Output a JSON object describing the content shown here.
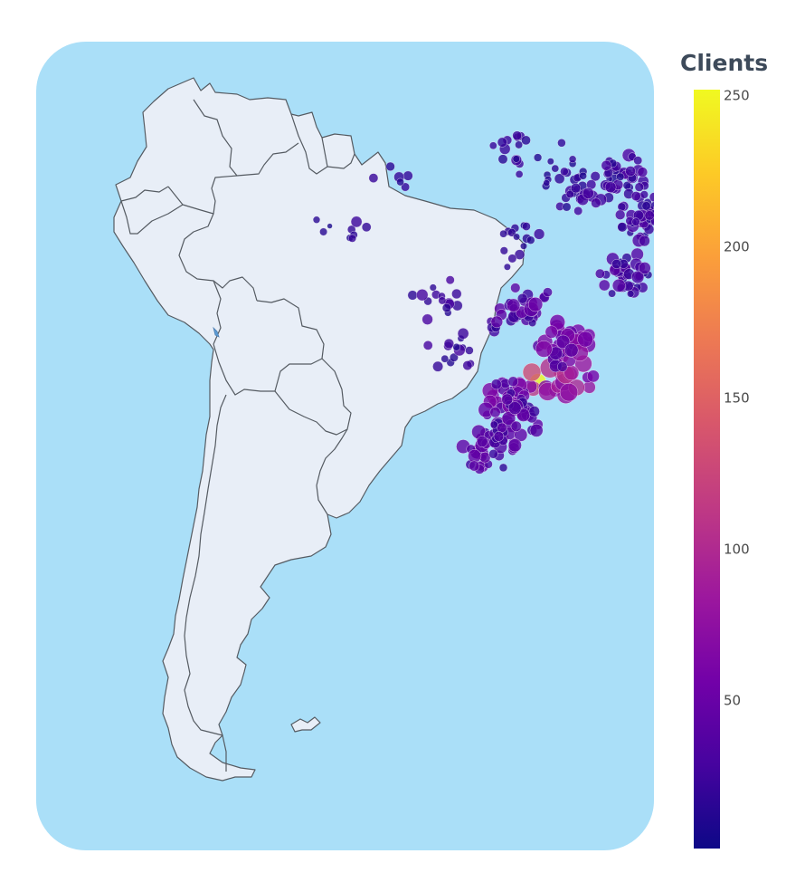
{
  "colorbar": {
    "title": "Clients",
    "ticks": [
      {
        "value": 50,
        "label": "50"
      },
      {
        "value": 100,
        "label": "100"
      },
      {
        "value": 150,
        "label": "150"
      },
      {
        "value": 200,
        "label": "200"
      },
      {
        "value": 250,
        "label": "250"
      }
    ],
    "range": [
      1,
      252
    ],
    "colorscale": [
      "#0d0887",
      "#46039f",
      "#7201a8",
      "#9c179e",
      "#bd3786",
      "#d8576b",
      "#ed7953",
      "#fb9f3a",
      "#fdca26",
      "#f0f921"
    ]
  },
  "map": {
    "region": "South America",
    "ocean_color": "#aadff8",
    "land_color": "#e8eef7",
    "border_color": "#555b62"
  },
  "chart_data": {
    "type": "scatter",
    "description_scope": "bubble map of client counts per location",
    "color_variable": "Clients",
    "color_range": [
      1,
      252
    ],
    "clusters": [
      {
        "lon": -46.6,
        "lat": -23.5,
        "value": 250,
        "count": 1
      },
      {
        "lon": -46.0,
        "lat": -22.6,
        "value": 110,
        "count": 10
      },
      {
        "lon": -43.2,
        "lat": -22.9,
        "value": 95,
        "count": 12
      },
      {
        "lon": -44.0,
        "lat": -19.9,
        "value": 70,
        "count": 40
      },
      {
        "lon": -49.3,
        "lat": -25.4,
        "value": 55,
        "count": 40
      },
      {
        "lon": -51.2,
        "lat": -30.0,
        "value": 45,
        "count": 40
      },
      {
        "lon": -49.0,
        "lat": -27.5,
        "value": 40,
        "count": 30
      },
      {
        "lon": -38.5,
        "lat": -12.9,
        "value": 35,
        "count": 40
      },
      {
        "lon": -38.5,
        "lat": -3.7,
        "value": 30,
        "count": 40
      },
      {
        "lon": -36.5,
        "lat": -7.5,
        "value": 30,
        "count": 50
      },
      {
        "lon": -42.8,
        "lat": -5.1,
        "value": 25,
        "count": 25
      },
      {
        "lon": -44.3,
        "lat": -2.5,
        "value": 20,
        "count": 15
      },
      {
        "lon": -48.5,
        "lat": -1.4,
        "value": 22,
        "count": 15
      },
      {
        "lon": -48.3,
        "lat": -10.2,
        "value": 20,
        "count": 15
      },
      {
        "lon": -49.3,
        "lat": -16.7,
        "value": 40,
        "count": 25
      },
      {
        "lon": -47.9,
        "lat": -15.8,
        "value": 45,
        "count": 10
      },
      {
        "lon": -54.6,
        "lat": -20.4,
        "value": 25,
        "count": 15
      },
      {
        "lon": -56.1,
        "lat": -15.6,
        "value": 25,
        "count": 15
      },
      {
        "lon": -60.0,
        "lat": -3.1,
        "value": 25,
        "count": 6
      },
      {
        "lon": -63.9,
        "lat": -8.8,
        "value": 20,
        "count": 6
      },
      {
        "lon": -67.8,
        "lat": -10.0,
        "value": 15,
        "count": 3
      }
    ]
  }
}
